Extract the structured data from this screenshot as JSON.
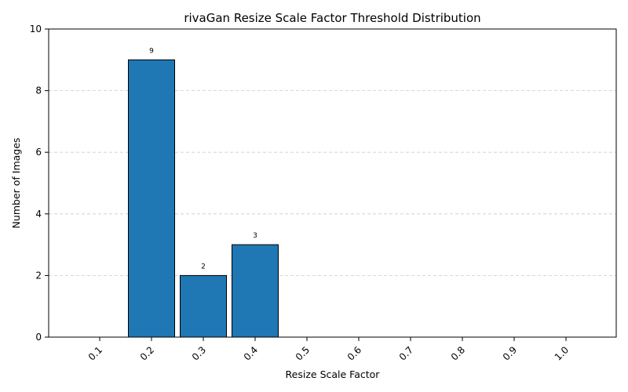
{
  "chart_data": {
    "type": "bar",
    "title": "rivaGan Resize Scale Factor Threshold Distribution",
    "xlabel": "Resize Scale Factor",
    "ylabel": "Number of Images",
    "categories": [
      "0.1",
      "0.2",
      "0.3",
      "0.4",
      "0.5",
      "0.6",
      "0.7",
      "0.8",
      "0.9",
      "1.0"
    ],
    "values": [
      0,
      9,
      2,
      3,
      0,
      0,
      0,
      0,
      0,
      0
    ],
    "data_labels": [
      "",
      "9",
      "2",
      "3",
      "",
      "",
      "",
      "",
      "",
      ""
    ],
    "ylim": [
      0,
      10
    ],
    "yticks": [
      0,
      2,
      4,
      6,
      8,
      10
    ],
    "grid": "y-dashed",
    "bar_color": "#1f77b4",
    "edge_color": "#000000"
  }
}
